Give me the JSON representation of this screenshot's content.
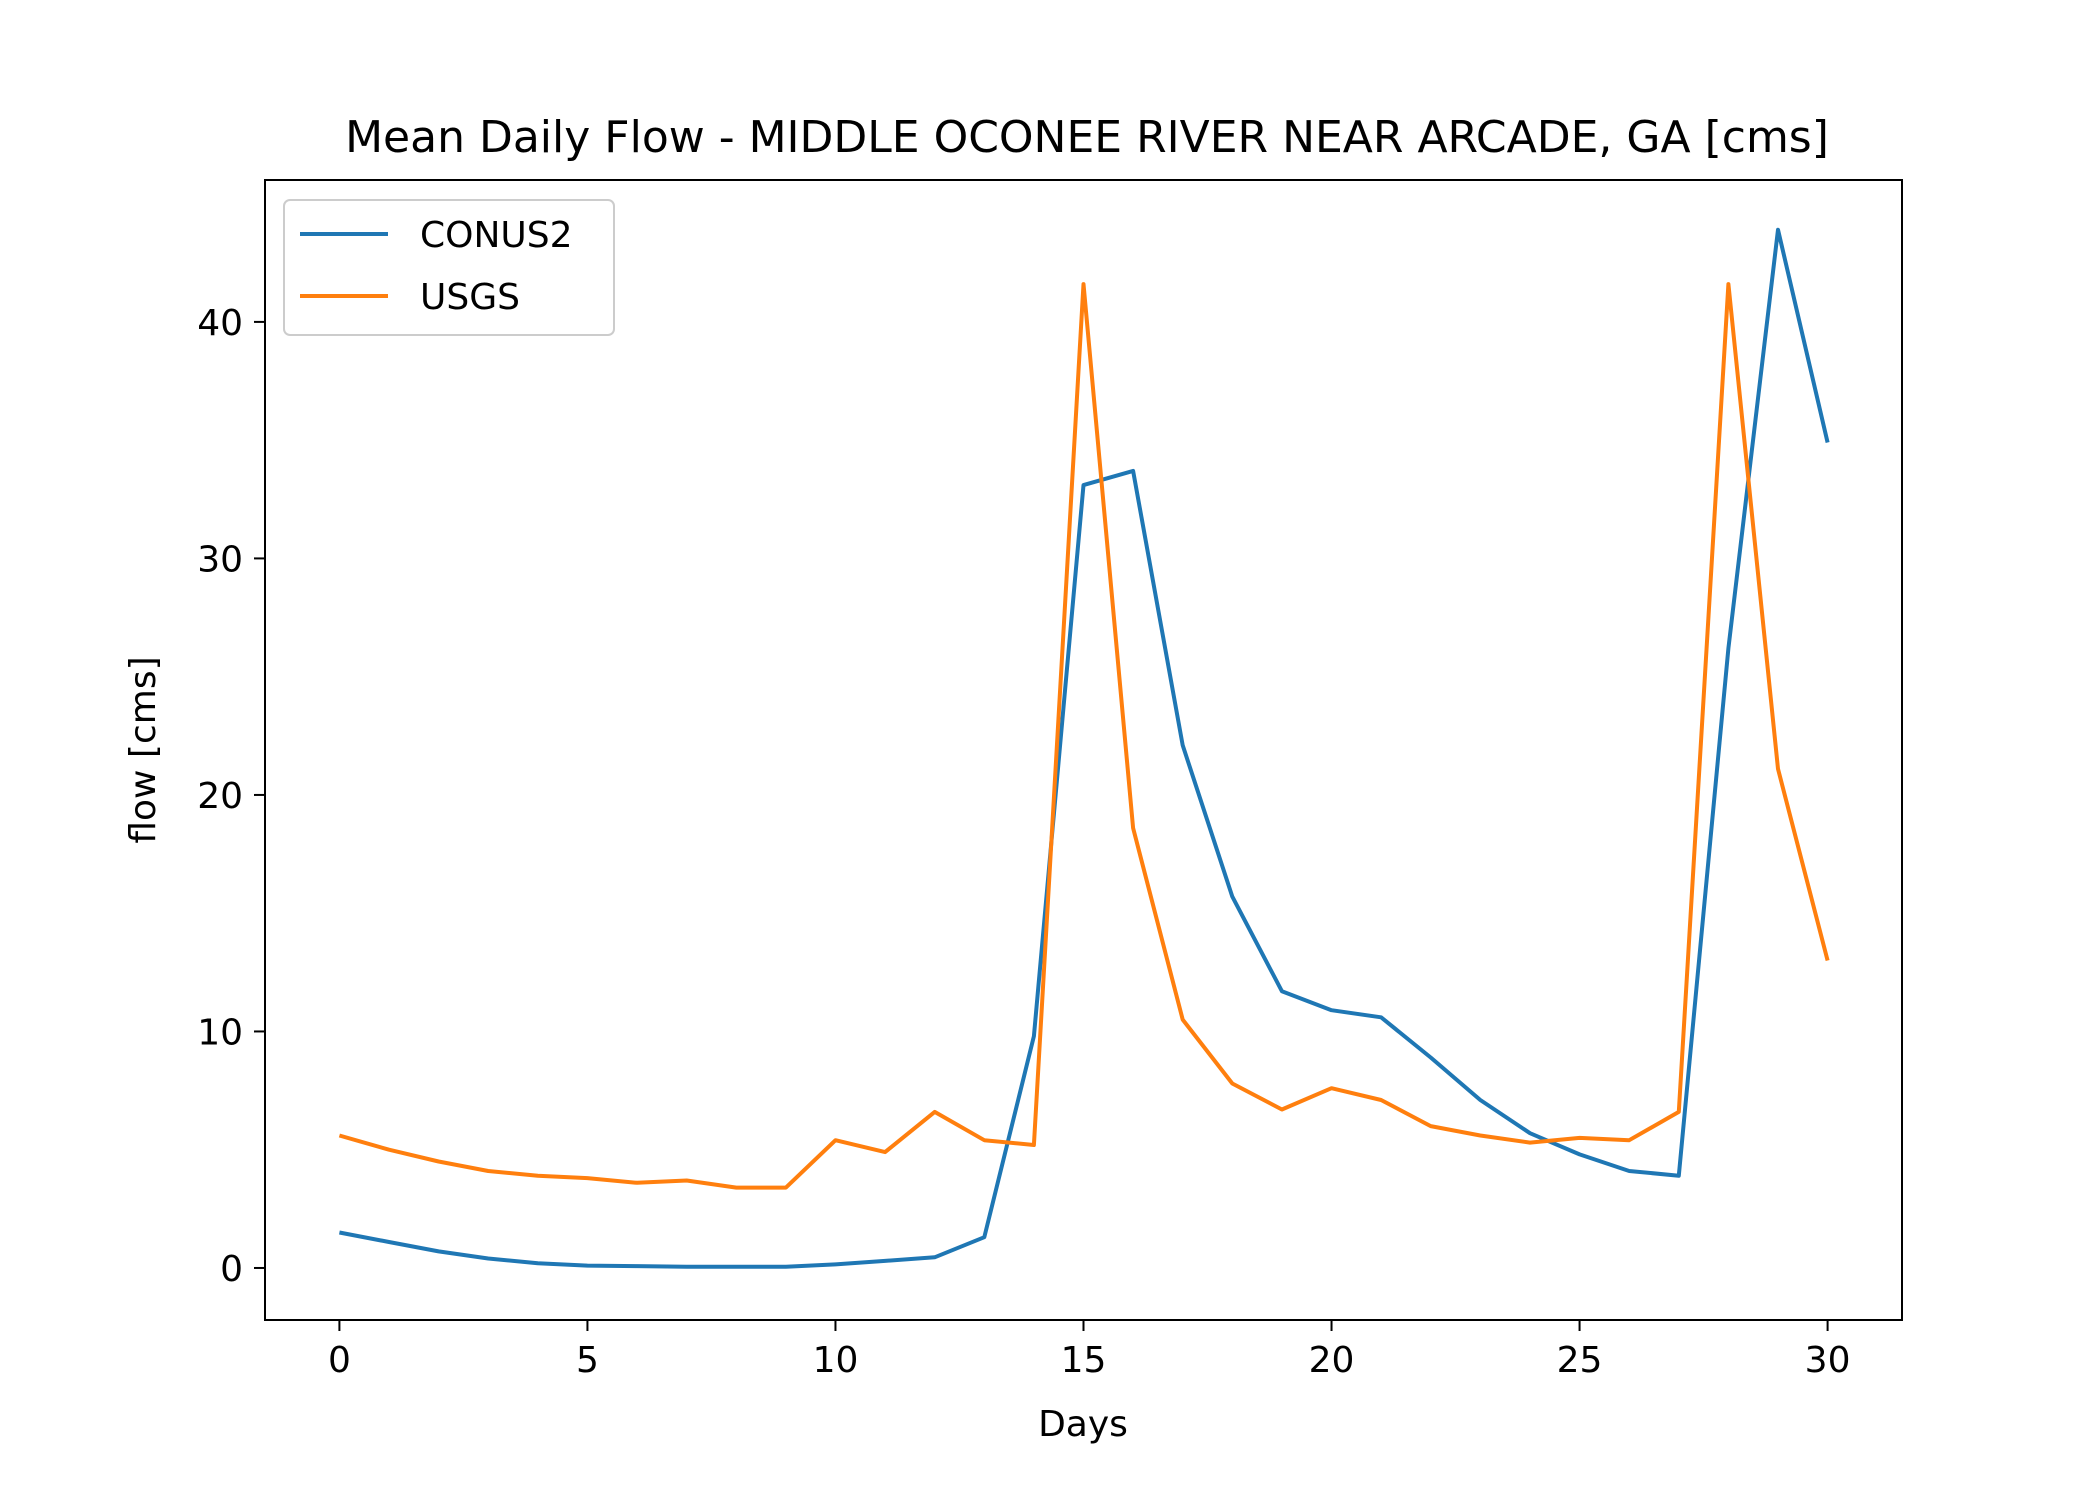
{
  "chart_data": {
    "type": "line",
    "title": "Mean Daily Flow - MIDDLE OCONEE RIVER NEAR ARCADE, GA [cms]",
    "xlabel": "Days",
    "ylabel": "flow [cms]",
    "xlim": [
      -1.5,
      31.5
    ],
    "ylim": [
      -2.2,
      46.0
    ],
    "xticks": [
      0,
      5,
      10,
      15,
      20,
      25,
      30
    ],
    "yticks": [
      0,
      10,
      20,
      30,
      40
    ],
    "grid": false,
    "legend_position": "upper left",
    "x": [
      0,
      1,
      2,
      3,
      4,
      5,
      6,
      7,
      8,
      9,
      10,
      11,
      12,
      13,
      14,
      15,
      16,
      17,
      18,
      19,
      20,
      21,
      22,
      23,
      24,
      25,
      26,
      27,
      28,
      29,
      30
    ],
    "series": [
      {
        "name": "CONUS2",
        "color": "#1f77b4",
        "values": [
          1.5,
          1.1,
          0.7,
          0.4,
          0.2,
          0.1,
          0.08,
          0.05,
          0.05,
          0.05,
          0.15,
          0.3,
          0.45,
          1.3,
          9.8,
          33.1,
          33.7,
          22.1,
          15.7,
          11.7,
          10.9,
          10.6,
          8.9,
          7.1,
          5.7,
          4.8,
          4.1,
          3.9,
          26.2,
          43.9,
          34.9
        ]
      },
      {
        "name": "USGS",
        "color": "#ff7f0e",
        "values": [
          5.6,
          5.0,
          4.5,
          4.1,
          3.9,
          3.8,
          3.6,
          3.7,
          3.4,
          3.4,
          5.4,
          4.9,
          6.6,
          5.4,
          5.2,
          41.6,
          18.6,
          10.5,
          7.8,
          6.7,
          7.6,
          7.1,
          6.0,
          5.6,
          5.3,
          5.5,
          5.4,
          6.6,
          41.6,
          21.1,
          13.0
        ]
      }
    ]
  }
}
